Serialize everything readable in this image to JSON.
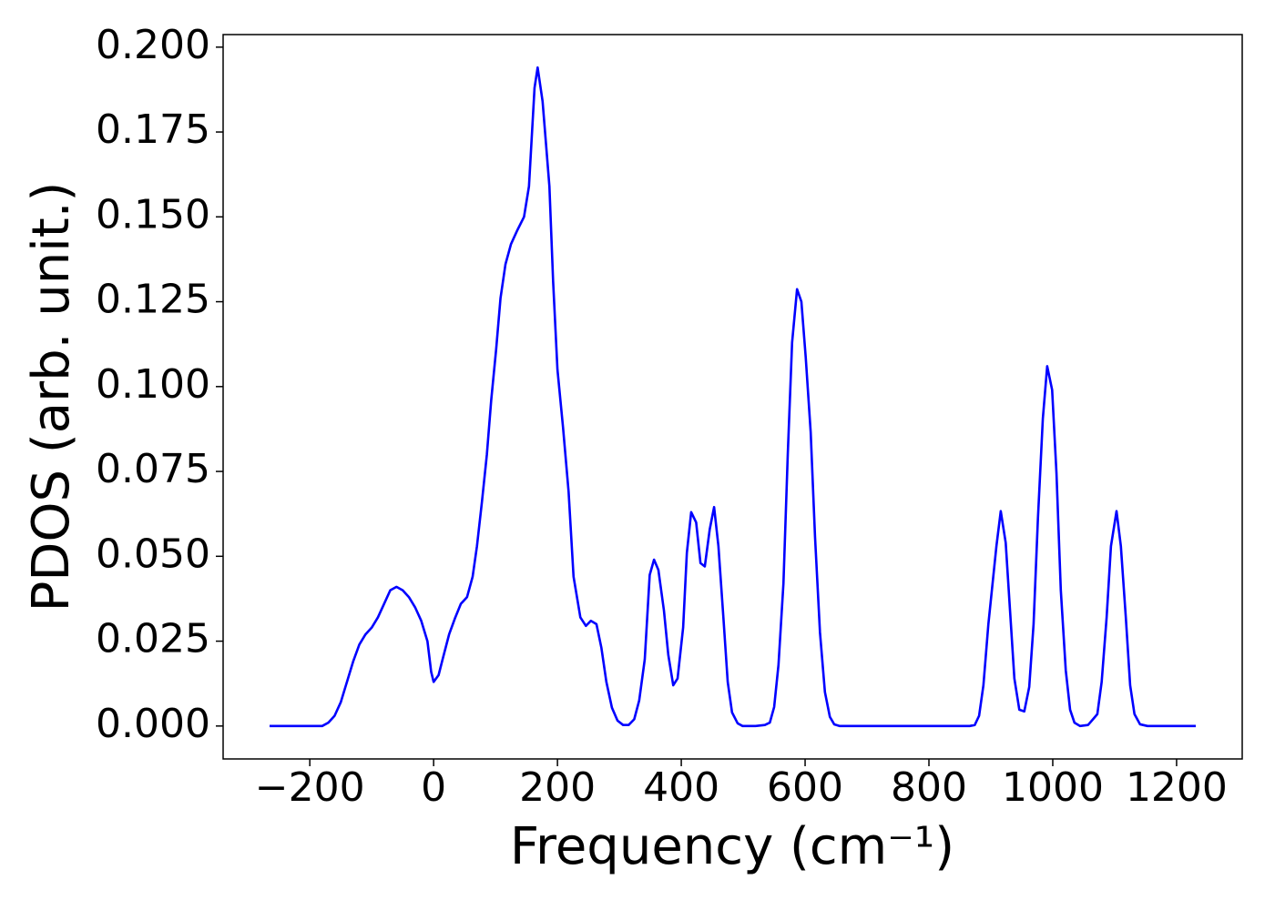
{
  "chart_data": {
    "type": "line",
    "xlabel": "Frequency (cm⁻¹)",
    "ylabel": "PDOS (arb. unit.)",
    "x": [
      -265,
      -180,
      -170,
      -160,
      -150,
      -140,
      -130,
      -120,
      -110,
      -100,
      -90,
      -80,
      -70,
      -60,
      -50,
      -40,
      -30,
      -20,
      -10,
      -4,
      0,
      8,
      15,
      25,
      35,
      44,
      54,
      63,
      70,
      78,
      86,
      93,
      101,
      108,
      116,
      125,
      135,
      146,
      154,
      163,
      168,
      176,
      187,
      193,
      200,
      209,
      218,
      226,
      237,
      246,
      254,
      263,
      271,
      279,
      288,
      297,
      306,
      315,
      324,
      332,
      341,
      349,
      356,
      363,
      372,
      379,
      387,
      394,
      403,
      409,
      416,
      424,
      431,
      438,
      446,
      453,
      460,
      468,
      475,
      482,
      491,
      499,
      520,
      535,
      543,
      550,
      557,
      565,
      572,
      579,
      587,
      594,
      601,
      609,
      616,
      624,
      632,
      640,
      647,
      656,
      866,
      874,
      881,
      888,
      896,
      909,
      916,
      924,
      931,
      938,
      946,
      954,
      962,
      969,
      976,
      984,
      991,
      999,
      1006,
      1013,
      1021,
      1028,
      1035,
      1044,
      1057,
      1065,
      1072,
      1079,
      1087,
      1094,
      1103,
      1110,
      1118,
      1125,
      1132,
      1141,
      1153,
      1231
    ],
    "series": [
      {
        "color": "#0000ff",
        "values": [
          0,
          0,
          0.001,
          0.003,
          0.007,
          0.013,
          0.019,
          0.024,
          0.027,
          0.029,
          0.032,
          0.036,
          0.04,
          0.041,
          0.04,
          0.038,
          0.035,
          0.031,
          0.025,
          0.016,
          0.013,
          0.015,
          0.02,
          0.027,
          0.032,
          0.036,
          0.038,
          0.044,
          0.053,
          0.066,
          0.08,
          0.096,
          0.111,
          0.126,
          0.136,
          0.142,
          0.146,
          0.15,
          0.159,
          0.188,
          0.194,
          0.184,
          0.159,
          0.131,
          0.105,
          0.088,
          0.069,
          0.044,
          0.032,
          0.0295,
          0.031,
          0.03,
          0.023,
          0.013,
          0.0054,
          0.0016,
          0.0003,
          0.0003,
          0.002,
          0.0075,
          0.0196,
          0.0445,
          0.049,
          0.046,
          0.034,
          0.021,
          0.012,
          0.014,
          0.029,
          0.051,
          0.063,
          0.06,
          0.048,
          0.047,
          0.058,
          0.0645,
          0.053,
          0.032,
          0.013,
          0.004,
          0.0008,
          0,
          0,
          0.0003,
          0.001,
          0.0056,
          0.018,
          0.042,
          0.08,
          0.113,
          0.1287,
          0.125,
          0.1086,
          0.0866,
          0.0558,
          0.0276,
          0.01,
          0.0027,
          0.0005,
          0,
          0,
          0.0003,
          0.003,
          0.012,
          0.03,
          0.053,
          0.0633,
          0.054,
          0.034,
          0.014,
          0.0048,
          0.0043,
          0.0115,
          0.03,
          0.061,
          0.0906,
          0.106,
          0.099,
          0.0745,
          0.04,
          0.0164,
          0.0048,
          0.001,
          0,
          0.0003,
          0.002,
          0.0035,
          0.013,
          0.032,
          0.053,
          0.0633,
          0.053,
          0.032,
          0.012,
          0.0035,
          0.0005,
          0,
          0
        ]
      }
    ],
    "xlim": [
      -340,
      1306
    ],
    "ylim": [
      -0.0097,
      0.2037
    ],
    "xticks": [
      {
        "value": -200,
        "label": "−200"
      },
      0,
      200,
      400,
      600,
      800,
      1000,
      1200
    ],
    "yticks": [
      {
        "value": 0,
        "label": "0.000"
      },
      0.025,
      {
        "value": 0.05,
        "label": "0.050"
      },
      0.075,
      {
        "value": 0.1,
        "label": "0.100"
      },
      0.125,
      {
        "value": 0.15,
        "label": "0.150"
      },
      0.175,
      {
        "value": 0.2,
        "label": "0.200"
      }
    ]
  }
}
